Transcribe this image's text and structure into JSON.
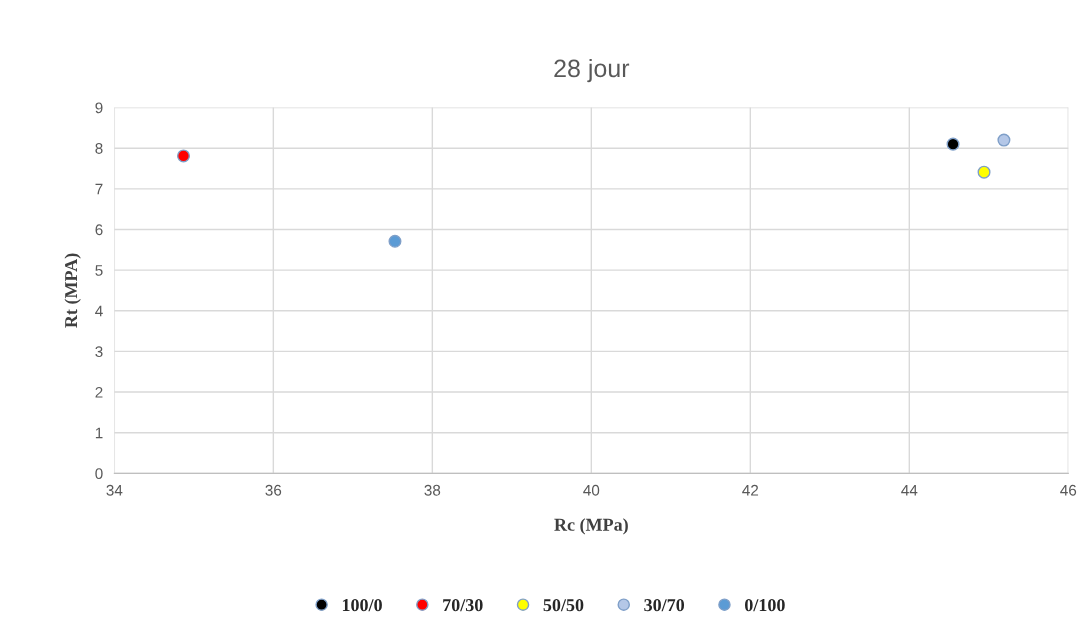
{
  "chart_data": {
    "type": "scatter",
    "title": "28 jour",
    "xlabel": "Rc (MPa)",
    "ylabel": "Rt (MPA)",
    "xlim": [
      34,
      46
    ],
    "xticks": [
      34,
      36,
      38,
      40,
      42,
      44,
      46
    ],
    "ylim": [
      0,
      9
    ],
    "yticks": [
      0,
      1,
      2,
      3,
      4,
      5,
      6,
      7,
      8,
      9
    ],
    "grid": true,
    "legend": "bottom",
    "marker": "circle",
    "series": [
      {
        "name": "100/0",
        "color": "#000000",
        "x": [
          44.55
        ],
        "values": [
          8.1
        ]
      },
      {
        "name": "70/30",
        "color": "#ff0000",
        "x": [
          34.87
        ],
        "values": [
          7.81
        ]
      },
      {
        "name": "50/50",
        "color": "#ffff00",
        "x": [
          44.94
        ],
        "values": [
          7.41
        ]
      },
      {
        "name": "30/70",
        "color": "#b4c7e7",
        "x": [
          45.19
        ],
        "values": [
          8.2
        ]
      },
      {
        "name": "0/100",
        "color": "#5b9bd5",
        "x": [
          37.53
        ],
        "values": [
          5.71
        ]
      }
    ]
  }
}
